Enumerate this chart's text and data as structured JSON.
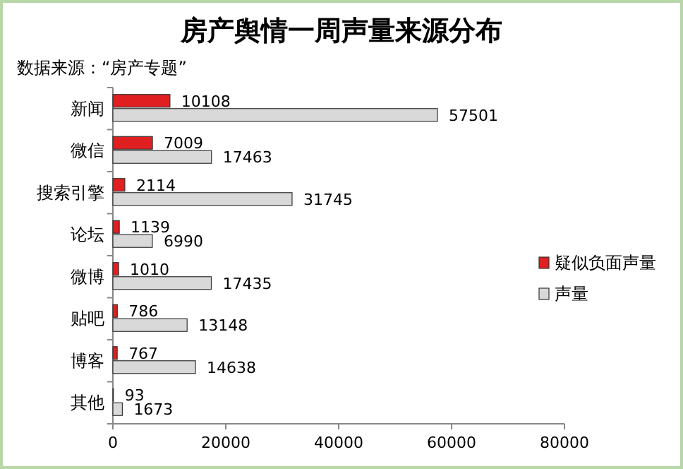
{
  "chart_data": {
    "type": "bar",
    "orientation": "horizontal",
    "title": "房产舆情一周声量来源分布",
    "annotations": [
      "数据来源：“房产专题”"
    ],
    "categories": [
      "新闻",
      "微信",
      "搜索引擎",
      "论坛",
      "微博",
      "贴吧",
      "博客",
      "其他"
    ],
    "series": [
      {
        "name": "疑似负面声量",
        "color": "#e02020",
        "values": [
          10108,
          7009,
          2114,
          1139,
          1010,
          786,
          767,
          93
        ]
      },
      {
        "name": "声量",
        "color": "#d9d9d9",
        "values": [
          57501,
          17463,
          31745,
          6990,
          17435,
          13148,
          14638,
          1673
        ]
      }
    ],
    "xlim": [
      0,
      80000
    ],
    "xticks": [
      0,
      20000,
      40000,
      60000,
      80000
    ],
    "data_labels": true,
    "legend": "right"
  }
}
